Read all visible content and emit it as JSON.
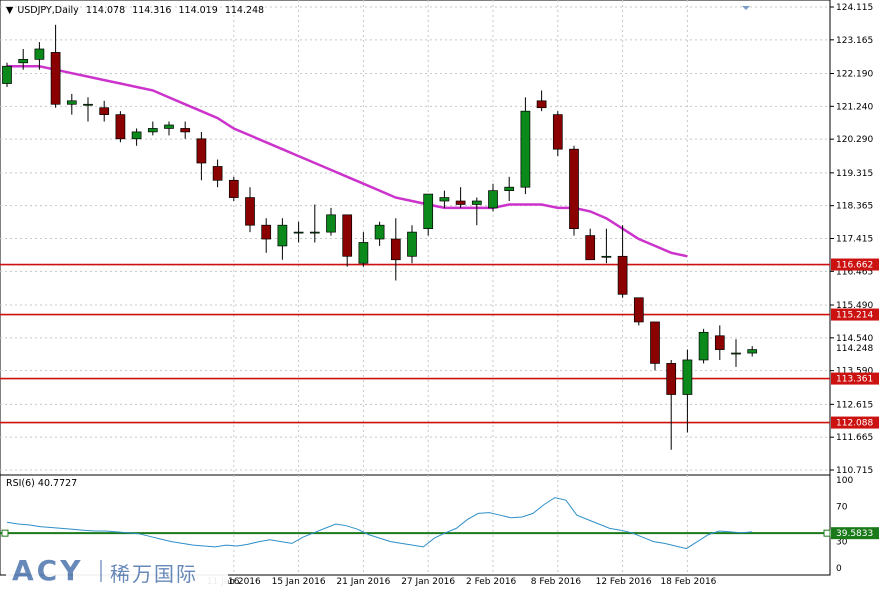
{
  "header": {
    "symbol": "USDJPY,Daily",
    "open": "114.078",
    "high": "114.316",
    "low": "114.019",
    "close": "114.248"
  },
  "rsi_header": {
    "label": "RSI(6)",
    "value": "40.7727"
  },
  "logo": {
    "brand": "ACY",
    "cn": "稀万国际"
  },
  "colors": {
    "bull": "#0b8a1b",
    "bear": "#8b0000",
    "ma": "#cc33cc",
    "hline": "#cc1111",
    "rsi": "#2f8fc7",
    "rsi_level": "#1a7a1a",
    "grid": "#c8c8c8"
  },
  "chart_data": [
    {
      "type": "candlestick",
      "title": "USDJPY,Daily",
      "price_ticks": [
        "124.115",
        "123.165",
        "122.190",
        "121.240",
        "120.290",
        "119.315",
        "118.365",
        "117.415",
        "116.465",
        "115.490",
        "114.540",
        "113.590",
        "112.615",
        "111.665",
        "110.715"
      ],
      "ylim": [
        110.715,
        124.115
      ],
      "x_labels": [
        {
          "index": 14,
          "label": "11 Jan 2016"
        },
        {
          "index": 18,
          "label": "15 Jan 2016"
        },
        {
          "index": 22,
          "label": "21 Jan 2016"
        },
        {
          "index": 26,
          "label": "27 Jan 2016"
        },
        {
          "index": 30,
          "label": "2 Feb 2016"
        },
        {
          "index": 34,
          "label": "8 Feb 2016"
        },
        {
          "index": 38,
          "label": "12 Feb 2016"
        },
        {
          "index": 42,
          "label": "18 Feb 2016"
        }
      ],
      "x_label_partial": "16",
      "candles": [
        [
          121.9,
          122.5,
          121.8,
          122.4
        ],
        [
          122.5,
          122.9,
          122.3,
          122.6
        ],
        [
          122.6,
          123.1,
          122.3,
          122.9
        ],
        [
          122.8,
          123.6,
          121.2,
          121.3
        ],
        [
          121.3,
          121.6,
          121.0,
          121.4
        ],
        [
          121.3,
          121.5,
          120.8,
          121.3
        ],
        [
          121.2,
          121.4,
          120.8,
          121.0
        ],
        [
          121.0,
          121.1,
          120.2,
          120.3
        ],
        [
          120.3,
          120.6,
          120.1,
          120.5
        ],
        [
          120.5,
          120.8,
          120.4,
          120.6
        ],
        [
          120.6,
          120.8,
          120.4,
          120.7
        ],
        [
          120.6,
          120.8,
          120.3,
          120.5
        ],
        [
          120.3,
          120.5,
          119.1,
          119.6
        ],
        [
          119.5,
          119.7,
          118.9,
          119.1
        ],
        [
          119.1,
          119.2,
          118.5,
          118.6
        ],
        [
          118.6,
          118.9,
          117.6,
          117.8
        ],
        [
          117.8,
          118.0,
          117.0,
          117.4
        ],
        [
          117.2,
          118.0,
          116.8,
          117.8
        ],
        [
          117.6,
          117.9,
          117.3,
          117.6
        ],
        [
          117.6,
          118.4,
          117.3,
          117.6
        ],
        [
          117.6,
          118.3,
          117.5,
          118.1
        ],
        [
          118.1,
          118.1,
          116.6,
          116.9
        ],
        [
          116.7,
          117.6,
          116.6,
          117.3
        ],
        [
          117.4,
          117.9,
          117.2,
          117.8
        ],
        [
          117.4,
          118.0,
          116.2,
          116.8
        ],
        [
          116.9,
          117.8,
          116.7,
          117.6
        ],
        [
          117.7,
          118.7,
          117.5,
          118.7
        ],
        [
          118.5,
          118.8,
          118.3,
          118.6
        ],
        [
          118.5,
          118.9,
          118.3,
          118.4
        ],
        [
          118.4,
          118.6,
          117.8,
          118.5
        ],
        [
          118.3,
          119.0,
          118.2,
          118.8
        ],
        [
          118.8,
          119.2,
          118.5,
          118.9
        ],
        [
          118.9,
          121.5,
          118.7,
          121.1
        ],
        [
          121.4,
          121.7,
          121.1,
          121.2
        ],
        [
          121.0,
          121.1,
          119.8,
          120.0
        ],
        [
          120.0,
          120.1,
          117.5,
          117.7
        ],
        [
          117.5,
          117.7,
          116.8,
          116.8
        ],
        [
          116.9,
          117.7,
          116.7,
          116.9
        ],
        [
          116.9,
          117.8,
          115.7,
          115.8
        ],
        [
          115.7,
          115.7,
          114.9,
          115.0
        ],
        [
          115.0,
          115.0,
          113.6,
          113.8
        ],
        [
          113.8,
          113.9,
          111.3,
          112.9
        ],
        [
          112.9,
          114.2,
          111.8,
          113.9
        ],
        [
          113.9,
          114.8,
          113.8,
          114.7
        ],
        [
          114.6,
          114.9,
          113.9,
          114.2
        ],
        [
          114.1,
          114.5,
          113.7,
          114.1
        ],
        [
          114.1,
          114.3,
          114.0,
          114.2
        ]
      ],
      "ma_series": [
        122.4,
        122.4,
        122.4,
        122.3,
        122.2,
        122.1,
        122.0,
        121.9,
        121.8,
        121.7,
        121.5,
        121.3,
        121.1,
        120.9,
        120.6,
        120.4,
        120.2,
        120.0,
        119.8,
        119.6,
        119.4,
        119.2,
        119.0,
        118.8,
        118.6,
        118.5,
        118.4,
        118.3,
        118.3,
        118.3,
        118.3,
        118.4,
        118.4,
        118.4,
        118.3,
        118.3,
        118.2,
        118.0,
        117.7,
        117.4,
        117.2,
        117.0,
        116.9
      ],
      "h_levels": [
        {
          "value": 116.662,
          "label": "116.662"
        },
        {
          "value": 115.214,
          "label": "115.214"
        },
        {
          "value": 113.361,
          "label": "113.361"
        },
        {
          "value": 112.088,
          "label": "112.088"
        }
      ],
      "last_price": {
        "value": 114.248,
        "label": "114.248"
      }
    },
    {
      "type": "line",
      "title": "RSI(6) 40.7727",
      "ylim": [
        0,
        100
      ],
      "y_ticks": [
        "100",
        "70",
        "30",
        "0"
      ],
      "level": {
        "value": 39.5833,
        "label": "39.5833"
      },
      "values": [
        52,
        50,
        49,
        47,
        46,
        45,
        44,
        43,
        42,
        42,
        41,
        40,
        39,
        36,
        33,
        30,
        28,
        26,
        25,
        24,
        26,
        25,
        27,
        30,
        32,
        30,
        28,
        35,
        40,
        45,
        50,
        48,
        44,
        38,
        34,
        30,
        28,
        26,
        24,
        34,
        40,
        45,
        55,
        62,
        63,
        60,
        57,
        58,
        62,
        72,
        80,
        77,
        60,
        55,
        50,
        45,
        43,
        40,
        35,
        30,
        28,
        25,
        22,
        30,
        38,
        42,
        41,
        40,
        41
      ]
    }
  ]
}
